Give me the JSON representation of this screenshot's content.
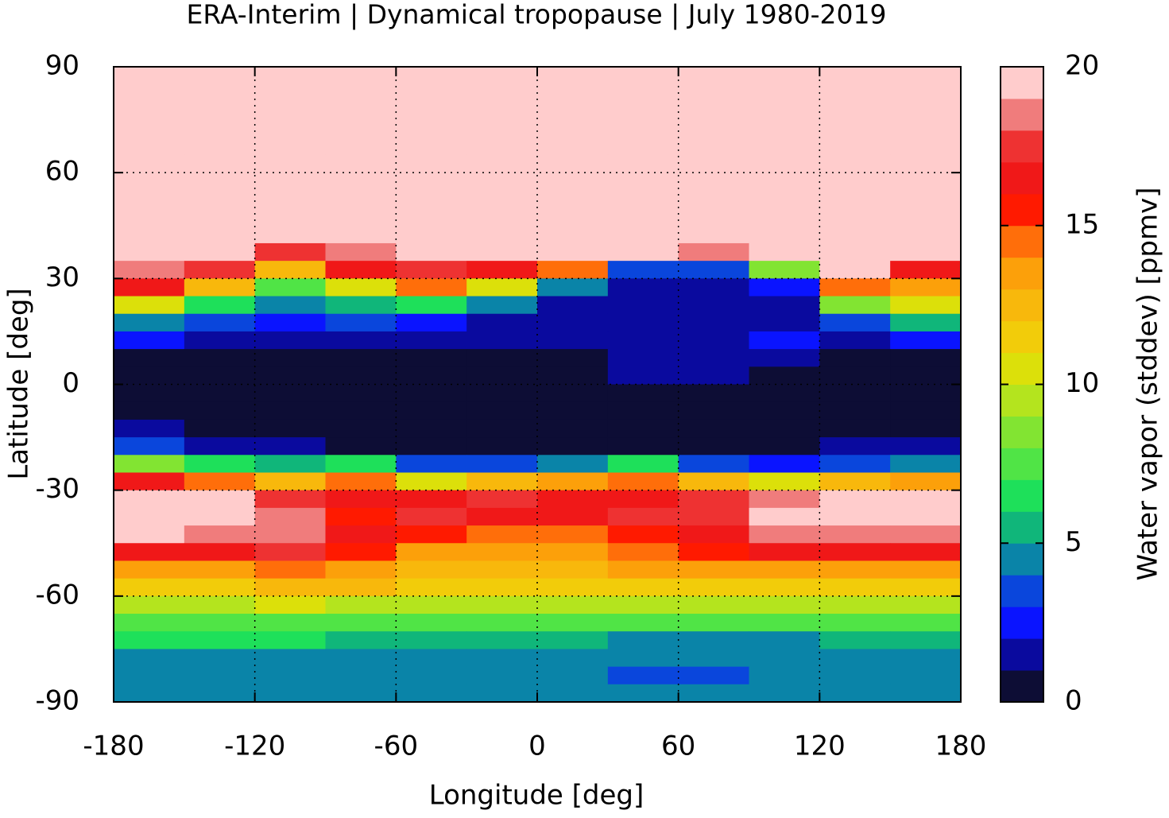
{
  "chart_data": {
    "type": "heatmap",
    "title": "ERA-Interim | Dynamical tropopause | July 1980-2019",
    "x_label": "Longitude [deg]",
    "y_label": "Latitude [deg]",
    "xlim": [
      -180,
      180
    ],
    "ylim": [
      -90,
      90
    ],
    "xticks": [
      -180,
      -120,
      -60,
      0,
      60,
      120,
      180
    ],
    "yticks": [
      90,
      60,
      30,
      0,
      -30,
      -60,
      -90
    ],
    "grid": true,
    "x": [
      -165,
      -135,
      -105,
      -75,
      -45,
      -15,
      15,
      45,
      75,
      105,
      135,
      165
    ],
    "y": [
      87.5,
      82.5,
      77.5,
      72.5,
      67.5,
      62.5,
      57.5,
      52.5,
      47.5,
      42.5,
      37.5,
      32.5,
      27.5,
      22.5,
      17.5,
      12.5,
      7.5,
      2.5,
      -2.5,
      -7.5,
      -12.5,
      -17.5,
      -22.5,
      -27.5,
      -32.5,
      -37.5,
      -42.5,
      -47.5,
      -52.5,
      -57.5,
      -62.5,
      -67.5,
      -72.5,
      -77.5,
      -82.5,
      -87.5
    ],
    "values": [
      [
        20,
        20,
        20,
        20,
        20,
        20,
        20,
        20,
        20,
        20,
        20,
        20
      ],
      [
        20,
        20,
        20,
        20,
        20,
        20,
        20,
        20,
        20,
        20,
        20,
        20
      ],
      [
        20,
        20,
        20,
        20,
        20,
        20,
        20,
        20,
        20,
        20,
        20,
        20
      ],
      [
        20,
        20,
        20,
        20,
        20,
        20,
        20,
        20,
        20,
        20,
        20,
        20
      ],
      [
        20,
        20,
        20,
        20,
        20,
        20,
        20,
        20,
        20,
        20,
        20,
        20
      ],
      [
        20,
        20,
        20,
        20,
        20,
        20,
        20,
        20,
        20,
        20,
        20,
        20
      ],
      [
        20,
        20,
        20,
        20,
        20,
        20,
        20,
        20,
        20,
        20,
        20,
        20
      ],
      [
        20,
        20,
        20,
        20,
        20,
        20,
        20,
        20,
        20,
        20,
        20,
        20
      ],
      [
        20,
        20,
        20,
        20,
        20,
        20,
        20,
        20,
        20,
        20,
        20,
        20
      ],
      [
        20,
        20,
        20,
        20,
        20,
        20,
        20,
        20,
        20,
        20,
        20,
        20
      ],
      [
        20,
        20,
        17,
        18,
        20,
        20,
        20,
        20,
        18,
        20,
        20,
        20
      ],
      [
        18,
        17,
        12,
        16,
        17,
        16,
        14,
        3,
        3,
        8,
        20,
        16
      ],
      [
        16,
        12,
        7,
        10,
        14,
        10,
        4,
        1.5,
        1.5,
        2,
        14,
        13
      ],
      [
        10,
        6,
        4,
        5,
        6,
        4,
        1.5,
        1,
        1.5,
        1.5,
        8,
        10
      ],
      [
        4,
        3,
        2,
        3,
        2,
        1.5,
        1,
        1.5,
        1.5,
        1.5,
        3,
        5
      ],
      [
        2,
        1.5,
        1.5,
        1.5,
        1.5,
        1.5,
        1.5,
        1.5,
        1.5,
        2,
        1.5,
        2
      ],
      [
        0.5,
        0.5,
        0.5,
        0.5,
        0.5,
        0.5,
        0.5,
        1.5,
        1.5,
        1,
        0.5,
        0.5
      ],
      [
        0.5,
        0.5,
        0.5,
        0.5,
        0.5,
        0.5,
        0.5,
        1.2,
        1.2,
        0.5,
        0.5,
        0.5
      ],
      [
        0.5,
        0.5,
        0.5,
        0.5,
        0.5,
        0.5,
        0.5,
        0.5,
        0.5,
        0.5,
        0.5,
        0.5
      ],
      [
        0.5,
        0.5,
        0.5,
        0.5,
        0.5,
        0.5,
        0.5,
        0.5,
        0.5,
        0.5,
        0.5,
        0.5
      ],
      [
        1.5,
        0.5,
        0.5,
        0.5,
        0.5,
        0.5,
        0.5,
        0.5,
        0.5,
        0.5,
        0.5,
        0.5
      ],
      [
        3,
        1.5,
        1,
        0.7,
        0.7,
        0.7,
        0.7,
        0.7,
        0.7,
        0.7,
        1,
        1.5
      ],
      [
        8,
        6,
        5,
        6,
        3,
        3,
        4,
        6,
        3,
        2,
        3,
        4
      ],
      [
        16,
        14,
        12,
        14,
        10,
        12,
        13,
        14,
        12,
        10,
        12,
        13
      ],
      [
        20,
        19,
        17,
        16,
        16,
        17,
        16,
        16,
        17,
        18,
        20,
        19
      ],
      [
        20,
        20,
        18,
        15,
        17,
        16,
        16,
        17,
        17,
        20,
        20,
        20
      ],
      [
        19,
        18,
        18,
        16,
        15,
        14,
        14,
        15,
        16,
        18,
        18,
        18
      ],
      [
        16,
        16,
        17,
        15,
        13,
        13,
        13,
        14,
        15,
        16,
        16,
        16
      ],
      [
        13,
        13,
        14,
        13,
        12,
        12,
        12,
        13,
        13,
        13,
        13,
        13
      ],
      [
        11,
        11,
        12,
        12,
        11,
        11,
        11,
        11,
        11,
        11,
        11,
        11
      ],
      [
        9,
        9,
        10,
        9,
        9,
        9,
        9,
        9,
        9,
        9,
        9,
        9
      ],
      [
        7,
        7,
        7,
        7,
        7,
        7,
        7,
        7,
        7,
        7,
        7,
        7
      ],
      [
        6,
        6,
        6,
        5.5,
        5.5,
        5,
        5,
        4.5,
        4.5,
        4.5,
        5,
        5.5
      ],
      [
        4.5,
        4.5,
        4.5,
        4.5,
        4.5,
        4.5,
        4.5,
        4,
        4,
        4.5,
        4.5,
        4.5
      ],
      [
        4.5,
        4.5,
        4.5,
        4.5,
        4.5,
        4.5,
        4.5,
        3.5,
        3.5,
        4.5,
        4.5,
        4.5
      ],
      [
        4.5,
        4.5,
        4.5,
        4.5,
        4.5,
        4.5,
        4.5,
        4.5,
        4.5,
        4.5,
        4.5,
        4.5
      ]
    ],
    "colorbar": {
      "label": "Water vapor (stddev) [ppmv]",
      "lim": [
        0,
        20
      ],
      "ticks": [
        0,
        5,
        10,
        15,
        20
      ],
      "colors": [
        "#0d0d35",
        "#0a0a9e",
        "#0a14ff",
        "#0a46dc",
        "#0a84a8",
        "#10b67a",
        "#1ee05a",
        "#50e446",
        "#82e432",
        "#b4e41e",
        "#dce00a",
        "#f2cc0a",
        "#f8b80c",
        "#fca00a",
        "#ff6e0a",
        "#ff1a00",
        "#f01818",
        "#ee3232",
        "#f07c7c",
        "#ffcccc"
      ]
    }
  }
}
